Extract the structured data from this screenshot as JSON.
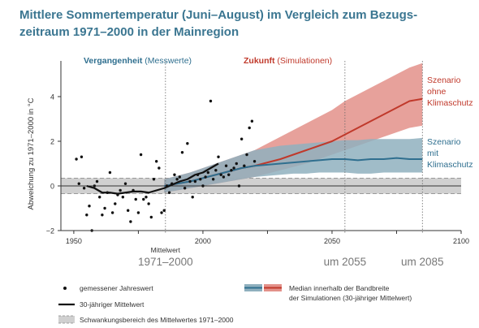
{
  "title_line1": "Mittlere Sommertemperatur (Juni–August) im Vergleich zum Bezugs-",
  "title_line2": "zeitraum 1971–2000 in der Mainregion",
  "colors": {
    "title": "#3b7691",
    "past": "#2f6f8f",
    "future": "#c0392b",
    "band_red": "#e3918a",
    "band_blue": "#8fb0be",
    "grey_band": "#d0d0d0"
  },
  "chart_data": {
    "type": "scatter",
    "ylabel": "Abweichung zu 1971–2000 in °C",
    "xlim": [
      1945,
      2100
    ],
    "ylim": [
      -2,
      5.6
    ],
    "x_ticks": [
      1950,
      1975,
      2000,
      2025,
      2050,
      2075,
      2100
    ],
    "x_tick_labels": [
      "1950",
      "",
      "2000",
      "",
      "2050",
      "",
      "2100"
    ],
    "y_ticks": [
      -2,
      0,
      2,
      4
    ],
    "y_tick_labels": [
      "−2",
      "0",
      "2",
      "4"
    ],
    "past_label_bold": "Vergangenheit",
    "past_label_rest": " (Messwerte)",
    "future_label_bold": "Zukunft",
    "future_label_rest": " (Simulationen)",
    "reference_band": [
      -0.35,
      0.35
    ],
    "markers": [
      {
        "x": 1985.5,
        "label": "Mittelwert",
        "sublabel": "1971–2000"
      },
      {
        "x": 2055,
        "label": "",
        "sublabel": "um 2055"
      },
      {
        "x": 2085,
        "label": "",
        "sublabel": "um 2085"
      }
    ],
    "scenario_red_label": [
      "Szenario",
      "ohne",
      "Klimaschutz"
    ],
    "scenario_blue_label": [
      "Szenario",
      "mit",
      "Klimaschutz"
    ],
    "observations": [
      [
        1951,
        1.2
      ],
      [
        1952,
        0.1
      ],
      [
        1953,
        1.3
      ],
      [
        1954,
        -0.1
      ],
      [
        1955,
        -1.3
      ],
      [
        1956,
        -0.9
      ],
      [
        1957,
        -2.0
      ],
      [
        1958,
        0.0
      ],
      [
        1959,
        0.2
      ],
      [
        1960,
        -0.5
      ],
      [
        1961,
        -1.3
      ],
      [
        1962,
        -1.0
      ],
      [
        1963,
        -0.3
      ],
      [
        1964,
        0.6
      ],
      [
        1965,
        -1.2
      ],
      [
        1966,
        -0.8
      ],
      [
        1967,
        -0.4
      ],
      [
        1968,
        -0.2
      ],
      [
        1969,
        -0.5
      ],
      [
        1970,
        0.1
      ],
      [
        1971,
        -1.1
      ],
      [
        1972,
        -1.6
      ],
      [
        1973,
        -0.2
      ],
      [
        1974,
        -0.6
      ],
      [
        1975,
        -1.2
      ],
      [
        1976,
        1.4
      ],
      [
        1977,
        -0.6
      ],
      [
        1978,
        -0.5
      ],
      [
        1979,
        -0.8
      ],
      [
        1980,
        -1.4
      ],
      [
        1981,
        0.3
      ],
      [
        1982,
        1.1
      ],
      [
        1983,
        0.8
      ],
      [
        1984,
        -1.2
      ],
      [
        1985,
        -1.1
      ],
      [
        1986,
        0.0
      ],
      [
        1987,
        -0.3
      ],
      [
        1988,
        0.1
      ],
      [
        1989,
        0.5
      ],
      [
        1990,
        0.3
      ],
      [
        1991,
        0.4
      ],
      [
        1992,
        1.5
      ],
      [
        1993,
        -0.1
      ],
      [
        1994,
        1.9
      ],
      [
        1995,
        0.2
      ],
      [
        1996,
        -0.5
      ],
      [
        1997,
        0.2
      ],
      [
        1998,
        0.5
      ],
      [
        1999,
        0.3
      ],
      [
        2000,
        0.0
      ],
      [
        2001,
        0.4
      ],
      [
        2002,
        0.6
      ],
      [
        2003,
        3.8
      ],
      [
        2004,
        0.3
      ],
      [
        2005,
        0.7
      ],
      [
        2006,
        1.3
      ],
      [
        2007,
        0.5
      ],
      [
        2008,
        0.4
      ],
      [
        2009,
        0.9
      ],
      [
        2010,
        0.5
      ],
      [
        2011,
        0.7
      ],
      [
        2012,
        0.8
      ],
      [
        2013,
        1.0
      ],
      [
        2014,
        0.0
      ],
      [
        2015,
        2.1
      ],
      [
        2016,
        0.9
      ],
      [
        2017,
        1.4
      ],
      [
        2018,
        2.6
      ],
      [
        2019,
        2.9
      ],
      [
        2020,
        1.1
      ]
    ],
    "observed_mean_x": [
      1955,
      1958,
      1961,
      1964,
      1967,
      1970,
      1973,
      1976,
      1979,
      1982,
      1985,
      1988,
      1991,
      1994,
      1997,
      2000,
      2003,
      2006
    ],
    "observed_mean_y": [
      0.0,
      -0.1,
      -0.3,
      -0.3,
      -0.35,
      -0.3,
      -0.25,
      -0.25,
      -0.3,
      -0.2,
      -0.1,
      0.05,
      0.2,
      0.3,
      0.5,
      0.6,
      0.8,
      1.0
    ],
    "sim_x": [
      1985,
      1990,
      1995,
      2000,
      2005,
      2010,
      2015,
      2020,
      2025,
      2030,
      2035,
      2040,
      2045,
      2050,
      2055,
      2060,
      2065,
      2070,
      2075,
      2080,
      2085
    ],
    "red_median": [
      0.0,
      0.1,
      0.2,
      0.35,
      0.5,
      0.65,
      0.8,
      0.9,
      1.05,
      1.2,
      1.4,
      1.6,
      1.8,
      2.0,
      2.3,
      2.6,
      2.9,
      3.2,
      3.5,
      3.8,
      3.9
    ],
    "red_low": [
      -0.3,
      -0.2,
      -0.1,
      0.0,
      0.1,
      0.2,
      0.3,
      0.4,
      0.55,
      0.7,
      0.85,
      1.0,
      1.2,
      1.4,
      1.6,
      1.8,
      2.0,
      2.2,
      2.4,
      2.6,
      2.7
    ],
    "red_high": [
      0.3,
      0.45,
      0.6,
      0.8,
      1.0,
      1.2,
      1.4,
      1.6,
      1.9,
      2.2,
      2.5,
      2.8,
      3.1,
      3.4,
      3.8,
      4.1,
      4.4,
      4.7,
      5.0,
      5.3,
      5.5
    ],
    "blue_median": [
      0.0,
      0.1,
      0.2,
      0.35,
      0.5,
      0.65,
      0.8,
      0.9,
      0.95,
      1.0,
      1.05,
      1.1,
      1.15,
      1.2,
      1.2,
      1.15,
      1.2,
      1.2,
      1.25,
      1.2,
      1.2
    ],
    "blue_low": [
      -0.3,
      -0.2,
      -0.1,
      0.0,
      0.1,
      0.2,
      0.3,
      0.4,
      0.45,
      0.5,
      0.55,
      0.55,
      0.6,
      0.6,
      0.6,
      0.55,
      0.55,
      0.6,
      0.6,
      0.6,
      0.6
    ],
    "blue_high": [
      0.3,
      0.45,
      0.6,
      0.8,
      1.0,
      1.2,
      1.4,
      1.6,
      1.7,
      1.8,
      1.85,
      1.9,
      1.95,
      2.0,
      2.05,
      2.05,
      2.1,
      2.1,
      2.1,
      2.1,
      2.15
    ]
  },
  "legend": {
    "observations": "gemessener Jahreswert",
    "mean30": "30-jähriger Mittelwert",
    "band": "Schwankungsbereich des Mittelwertes 1971–2000",
    "median_line1": "Median innerhalb der Bandbreite",
    "median_line2": "der Simulationen (30-jähriger Mittelwert)"
  }
}
